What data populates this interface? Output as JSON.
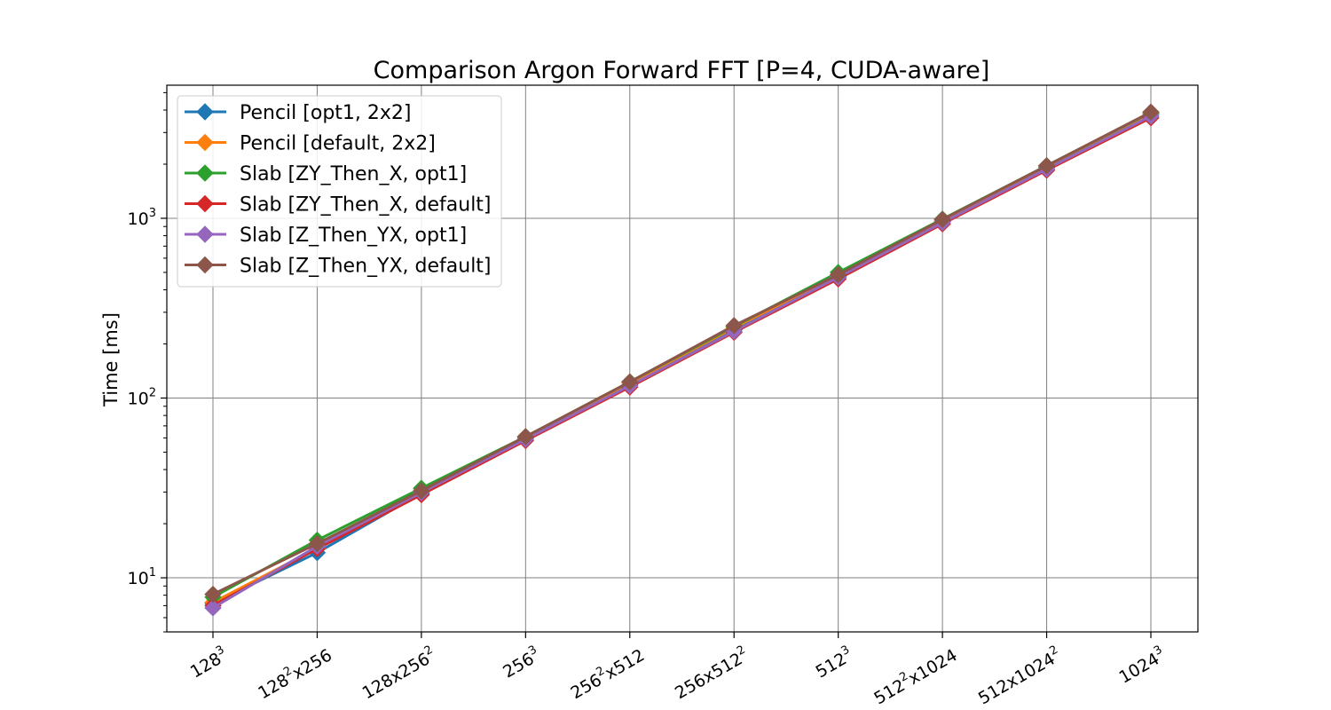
{
  "chart_data": {
    "type": "line",
    "title": "Comparison Argon Forward FFT [P=4, CUDA-aware]",
    "xlabel": "",
    "ylabel": "Time [ms]",
    "yscale": "log",
    "ylim": [
      5,
      5500
    ],
    "grid": true,
    "legend_position": "upper-left",
    "categories": [
      {
        "base": "128",
        "sup": "3",
        "rest": "",
        "sup2": ""
      },
      {
        "base": "128",
        "sup": "2",
        "rest": "x256",
        "sup2": ""
      },
      {
        "base": "128x256",
        "sup": "2",
        "rest": "",
        "sup2": ""
      },
      {
        "base": "256",
        "sup": "3",
        "rest": "",
        "sup2": ""
      },
      {
        "base": "256",
        "sup": "2",
        "rest": "x512",
        "sup2": ""
      },
      {
        "base": "256x512",
        "sup": "2",
        "rest": "",
        "sup2": ""
      },
      {
        "base": "512",
        "sup": "3",
        "rest": "",
        "sup2": ""
      },
      {
        "base": "512",
        "sup": "2",
        "rest": "x1024",
        "sup2": ""
      },
      {
        "base": "512x1024",
        "sup": "2",
        "rest": "",
        "sup2": ""
      },
      {
        "base": "1024",
        "sup": "3",
        "rest": "",
        "sup2": ""
      }
    ],
    "yticks": [
      {
        "value": 10,
        "base": "10",
        "sup": "1"
      },
      {
        "value": 100,
        "base": "10",
        "sup": "2"
      },
      {
        "value": 1000,
        "base": "10",
        "sup": "3"
      }
    ],
    "series": [
      {
        "name": "Pencil [opt1, 2x2]",
        "color": "#1f77b4",
        "values": [
          7.2,
          13.8,
          29.5,
          60,
          118,
          240,
          475,
          960,
          1920,
          3800
        ]
      },
      {
        "name": "Pencil [default, 2x2]",
        "color": "#ff7f0e",
        "values": [
          7.3,
          14.6,
          30.2,
          61,
          121,
          246,
          485,
          975,
          1950,
          3850
        ]
      },
      {
        "name": "Slab [ZY_Then_X, opt1]",
        "color": "#2ca02c",
        "values": [
          7.8,
          16.2,
          31.5,
          61,
          123,
          250,
          500,
          990,
          1960,
          3880
        ]
      },
      {
        "name": "Slab [ZY_Then_X, default]",
        "color": "#d62728",
        "values": [
          7.0,
          14.5,
          29.0,
          58,
          115,
          232,
          460,
          930,
          1850,
          3620
        ]
      },
      {
        "name": "Slab [Z_Then_YX, opt1]",
        "color": "#9467bd",
        "values": [
          6.8,
          15.0,
          29.8,
          59,
          117,
          235,
          470,
          945,
          1880,
          3700
        ]
      },
      {
        "name": "Slab [Z_Then_YX, default]",
        "color": "#8c564b",
        "values": [
          8.1,
          15.5,
          30.5,
          61,
          123,
          253,
          485,
          985,
          1960,
          3900
        ]
      }
    ]
  }
}
